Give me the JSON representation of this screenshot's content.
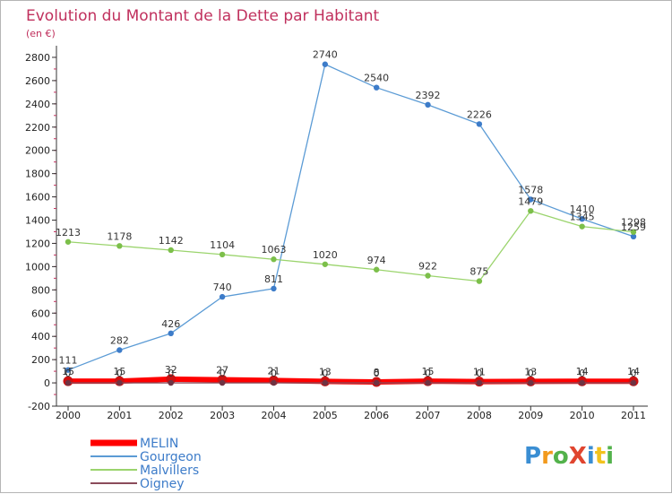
{
  "title": "Evolution du Montant de la Dette par Habitant",
  "subtitle": "(en €)",
  "logo": {
    "text": "ProXiti",
    "colors": [
      "#3a8ed3",
      "#f29a1d",
      "#53b24b",
      "#e0452f",
      "#3a8ed3",
      "#f2c21d",
      "#53b24b"
    ]
  },
  "chart_data": {
    "type": "line",
    "title": "Evolution du Montant de la Dette par Habitant",
    "subtitle": "(en €)",
    "x": [
      "2000",
      "2001",
      "2002",
      "2003",
      "2004",
      "2005",
      "2006",
      "2007",
      "2008",
      "2009",
      "2010",
      "2011"
    ],
    "yticks": [
      -200,
      0,
      200,
      400,
      600,
      800,
      1000,
      1200,
      1400,
      1600,
      1800,
      2000,
      2200,
      2400,
      2600,
      2800
    ],
    "ylim": [
      -200,
      2900
    ],
    "grid": false,
    "legend_position": "bottom-left",
    "series": [
      {
        "name": "Gourgeon",
        "color": "#5b9bd5",
        "marker": "#3d7cc9",
        "width": 1.3,
        "values": [
          111,
          282,
          426,
          740,
          811,
          2740,
          2540,
          2392,
          2226,
          1578,
          1410,
          1259
        ],
        "labels": [
          "111",
          "282",
          "426",
          "740",
          "811",
          "2740",
          "2540",
          "2392",
          "2226",
          "1578",
          "1410",
          "1259"
        ]
      },
      {
        "name": "Malvillers",
        "color": "#9bd46d",
        "marker": "#7cbf4a",
        "width": 1.3,
        "values": [
          1213,
          1178,
          1142,
          1104,
          1063,
          1020,
          974,
          922,
          875,
          1479,
          1345,
          1298
        ],
        "labels": [
          "1213",
          "1178",
          "1142",
          "1104",
          "1063",
          "1020",
          "974",
          "922",
          "875",
          "1479",
          "1345",
          "1298"
        ]
      },
      {
        "name": "MELIN",
        "color": "#ff0000",
        "marker": "#cc1111",
        "width": 6,
        "values": [
          15,
          15,
          32,
          27,
          21,
          13,
          8,
          15,
          11,
          13,
          14,
          14
        ],
        "labels": [
          "15",
          "15",
          "32",
          "27",
          "21",
          "13",
          "8",
          "15",
          "11",
          "13",
          "14",
          "14"
        ]
      },
      {
        "name": "Oigney",
        "color": "#8b4b5a",
        "marker": "#6e3343",
        "width": 1.3,
        "values": [
          0,
          0,
          0,
          0,
          0,
          0,
          0,
          0,
          0,
          0,
          0,
          0
        ],
        "labels": [
          "0",
          "0",
          "0",
          "0",
          "0",
          "0",
          "0",
          "0",
          "0",
          "0",
          "0",
          "0"
        ]
      }
    ],
    "legend_order": [
      "MELIN",
      "Gourgeon",
      "Malvillers",
      "Oigney"
    ]
  }
}
